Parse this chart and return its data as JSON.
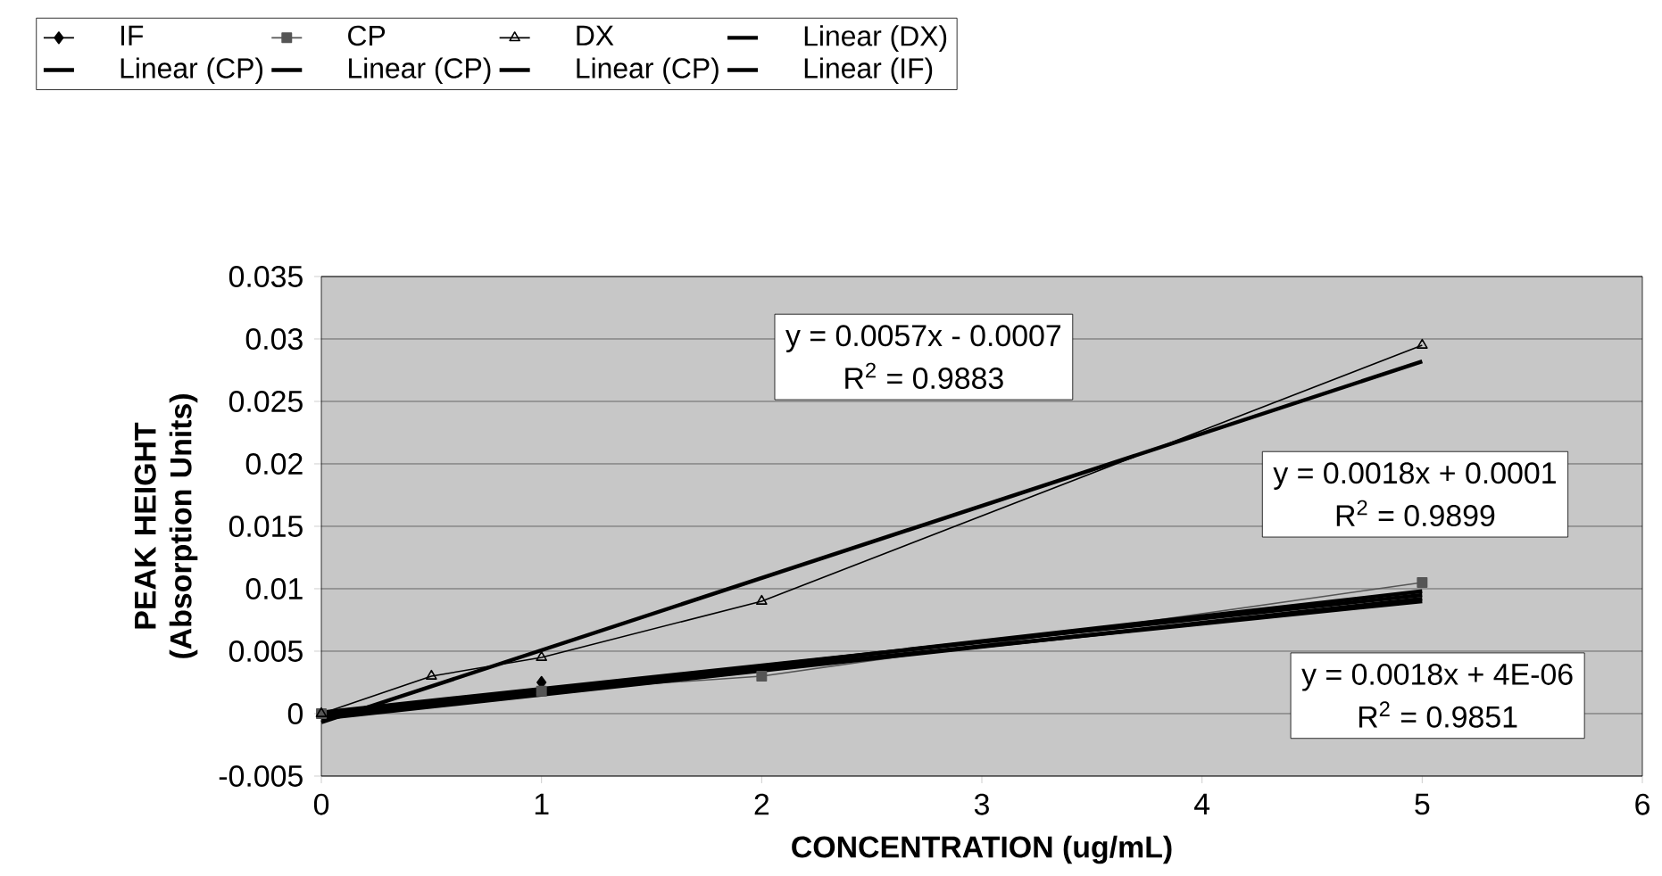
{
  "chart_data": {
    "type": "line",
    "xlabel": "CONCENTRATION (ug/mL)",
    "ylabel": "PEAK HEIGHT (Absorption Units)",
    "xlim": [
      0,
      6
    ],
    "xticks": [
      0,
      1,
      2,
      3,
      4,
      5,
      6
    ],
    "ylim": [
      -0.005,
      0.035
    ],
    "yticks": [
      -0.005,
      0,
      0.005,
      0.01,
      0.015,
      0.02,
      0.025,
      0.03,
      0.035
    ],
    "grid": "y",
    "legend": "top",
    "series": [
      {
        "name": "IF",
        "color": "#000000",
        "marker": "diamond",
        "x": [
          1
        ],
        "values": [
          0.0025
        ]
      },
      {
        "name": "CP",
        "color": "#555555",
        "marker": "square",
        "x": [
          0,
          1,
          2,
          5
        ],
        "values": [
          0,
          0.0018,
          0.003,
          0.0105
        ]
      },
      {
        "name": "DX",
        "color": "#000000",
        "marker": "triangle",
        "x": [
          0,
          0.5,
          1,
          2,
          5
        ],
        "values": [
          0,
          0.003,
          0.0045,
          0.009,
          0.0295
        ]
      },
      {
        "name": "Linear (DX)",
        "color": "#000000",
        "marker": "none",
        "x": [
          0,
          5
        ],
        "values": [
          -0.0007,
          0.0282
        ]
      },
      {
        "name": "Linear (CP)",
        "color": "#000000",
        "marker": "none",
        "x": [
          0,
          5
        ],
        "values": [
          0.0001,
          0.0095
        ]
      },
      {
        "name": "Linear (CP)",
        "color": "#000000",
        "marker": "none",
        "x": [
          0,
          5
        ],
        "values": [
          -0.0002,
          0.0098
        ]
      },
      {
        "name": "Linear (CP)",
        "color": "#000000",
        "marker": "none",
        "x": [
          0,
          5
        ],
        "values": [
          -0.0004,
          0.0092
        ]
      },
      {
        "name": "Linear (IF)",
        "color": "#000000",
        "marker": "none",
        "x": [
          0,
          5
        ],
        "values": [
          0,
          0.009
        ]
      }
    ],
    "annotations": [
      "y = 0.0057x - 0.0007",
      "R$^{2}$ = 0.9883",
      "y = 0.0018x + 0.0001",
      "R$^{2}$ = 0.9899",
      "y = 0.0018x + 4E-06",
      "R$^{2}$ = 0.9851"
    ]
  }
}
